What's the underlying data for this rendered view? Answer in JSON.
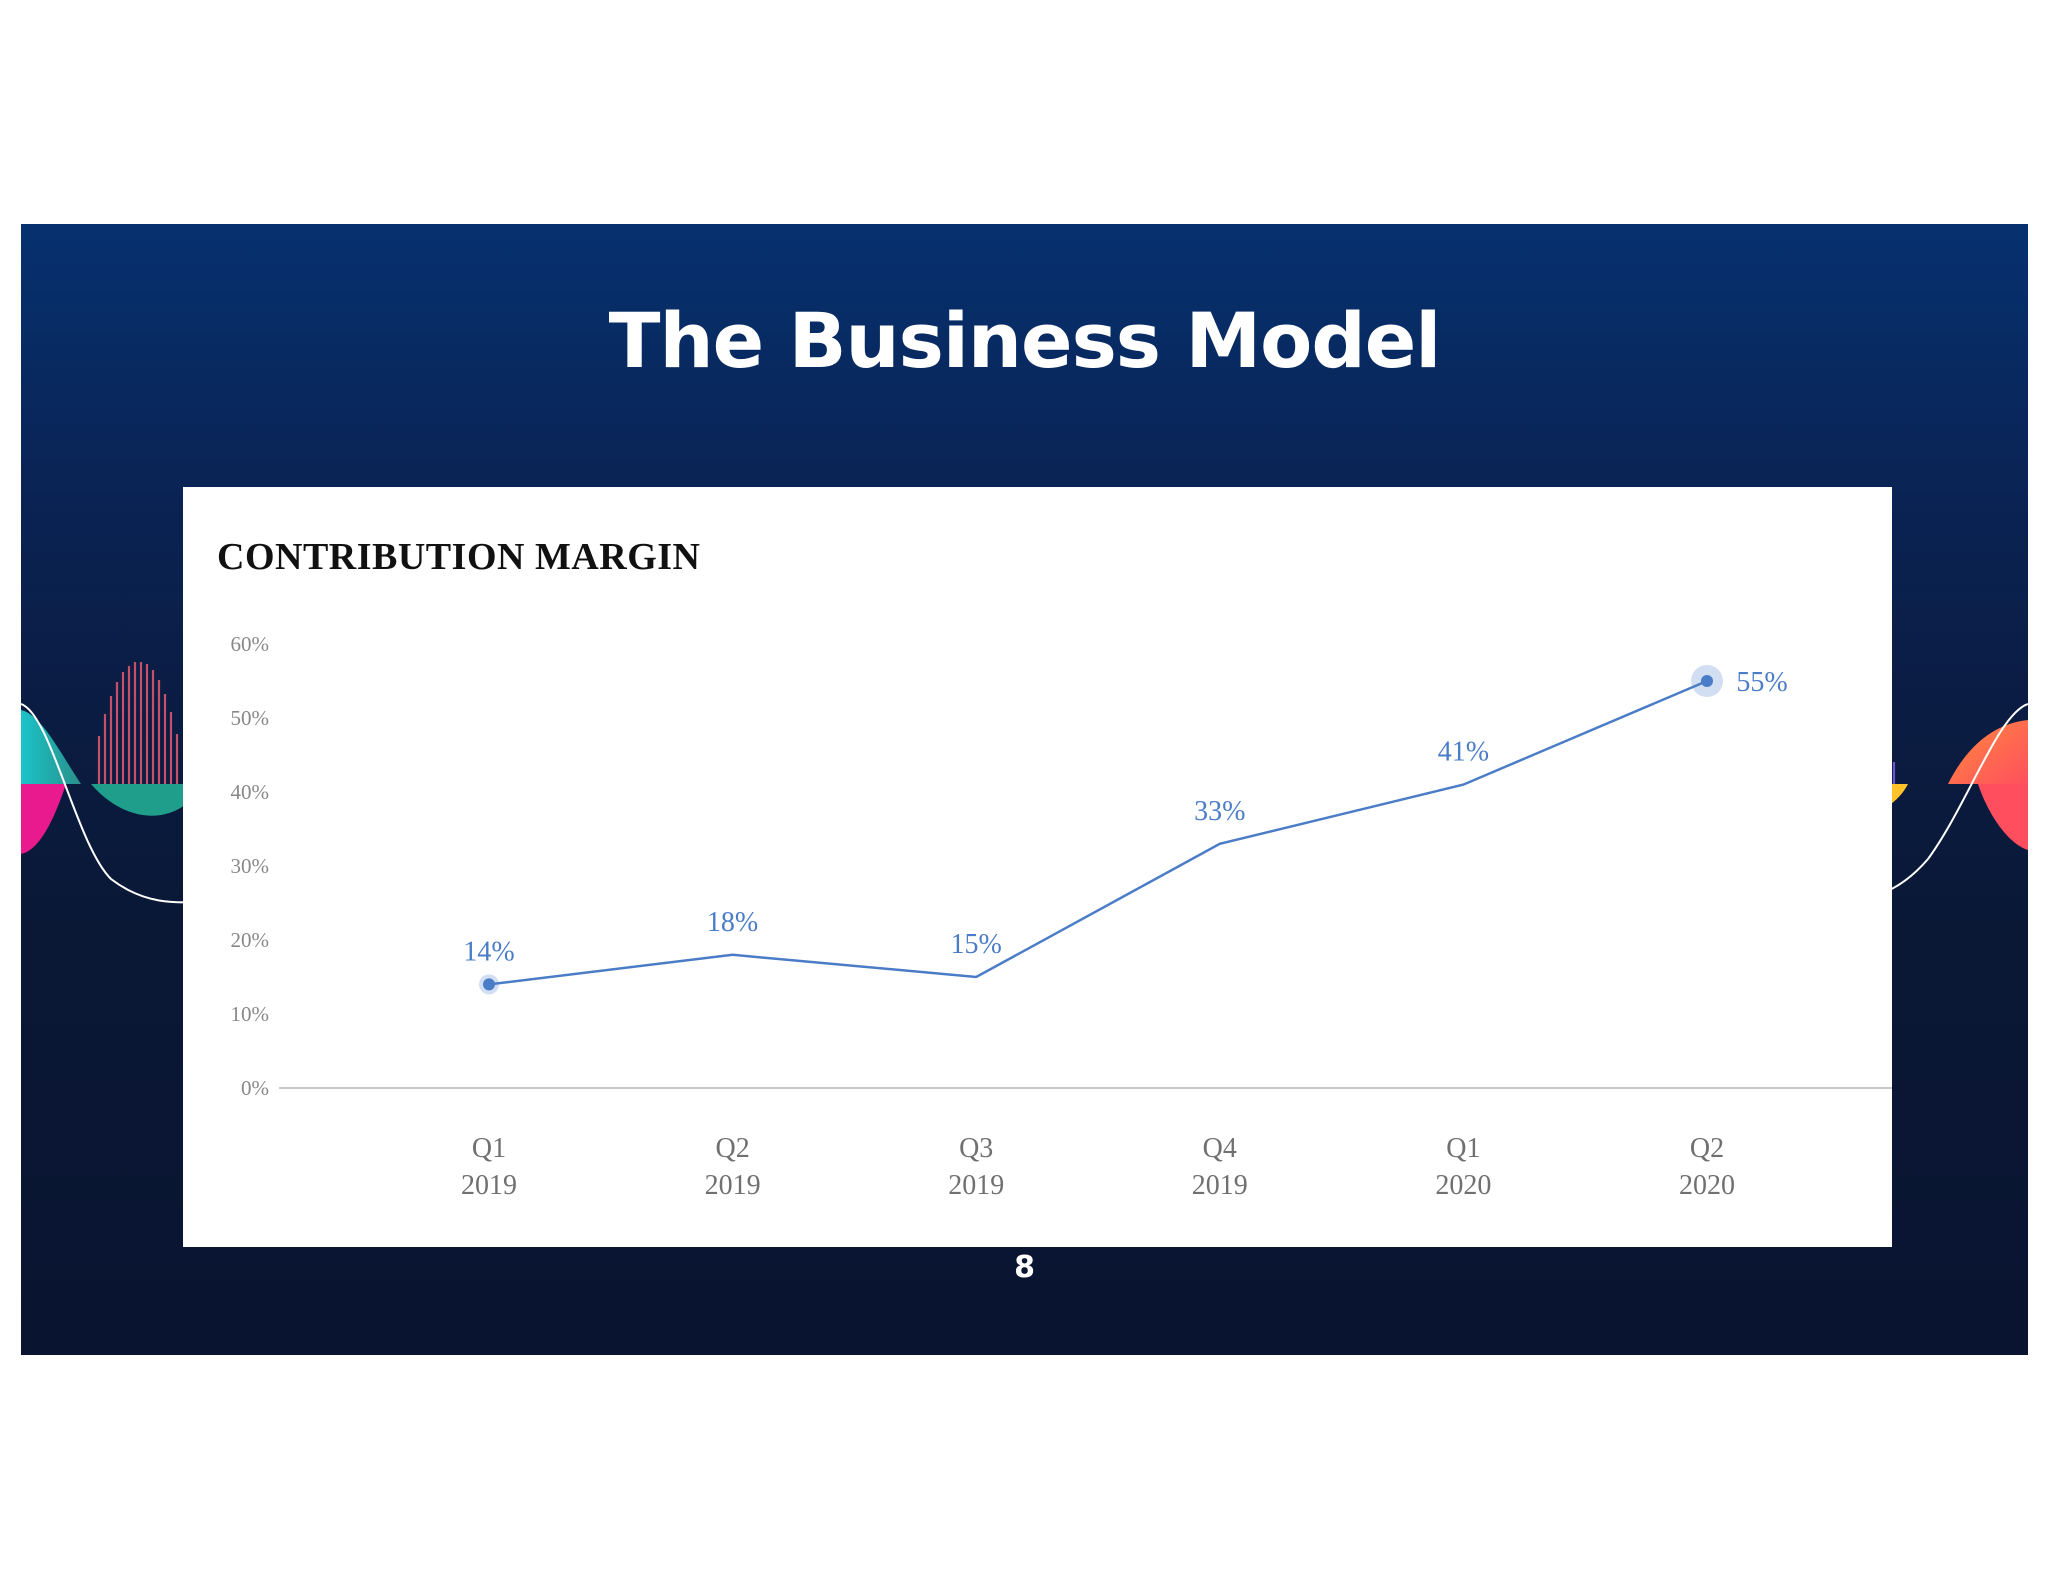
{
  "slide": {
    "title": "The Business Model",
    "page_number": "8"
  },
  "chart_data": {
    "type": "line",
    "title": "CONTRIBUTION MARGIN",
    "categories": [
      "Q1\n2019",
      "Q2\n2019",
      "Q3\n2019",
      "Q4\n2019",
      "Q1\n2020",
      "Q2\n2020"
    ],
    "category_lines": [
      [
        "Q1",
        "2019"
      ],
      [
        "Q2",
        "2019"
      ],
      [
        "Q3",
        "2019"
      ],
      [
        "Q4",
        "2019"
      ],
      [
        "Q1",
        "2020"
      ],
      [
        "Q2",
        "2020"
      ]
    ],
    "values": [
      14,
      18,
      15,
      33,
      41,
      55
    ],
    "data_labels": [
      "14%",
      "18%",
      "15%",
      "33%",
      "41%",
      "55%"
    ],
    "yticks": [
      "0%",
      "10%",
      "20%",
      "30%",
      "40%",
      "50%",
      "60%"
    ],
    "ylim": [
      0,
      60
    ],
    "xlabel": "",
    "ylabel": "",
    "grid": false,
    "legend": "none",
    "line_color": "#4a7cc7",
    "highlighted_points": [
      0,
      5
    ]
  }
}
